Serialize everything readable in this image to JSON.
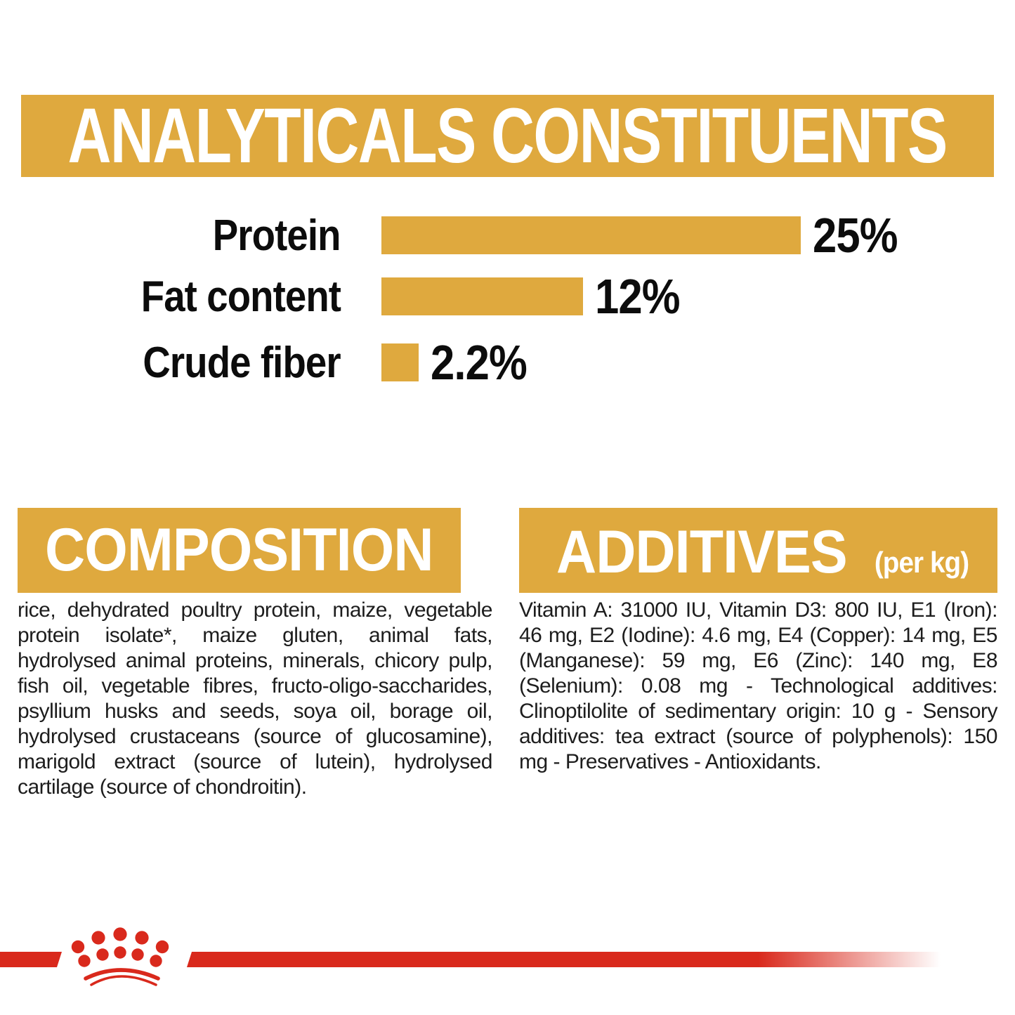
{
  "colors": {
    "gold": "#DFA93E",
    "red": "#D9291C",
    "text": "#1D1D1D",
    "white": "#FFFFFF"
  },
  "analyticals": {
    "title": "ANALYTICALS CONSTITUENTS"
  },
  "chart_data": {
    "type": "bar",
    "orientation": "horizontal",
    "title": "ANALYTICALS CONSTITUENTS",
    "categories": [
      "Protein",
      "Fat content",
      "Crude fiber"
    ],
    "values": [
      25,
      12,
      2.2
    ],
    "value_labels": [
      "25%",
      "12%",
      "2.2%"
    ],
    "unit": "%",
    "xlim": [
      0,
      25
    ],
    "bar_color": "#DFA93E",
    "grid": false,
    "legend": false
  },
  "composition": {
    "title": "COMPOSITION",
    "body": "rice, dehydrated poultry protein, maize, vegetable protein isolate*, maize gluten, animal fats, hydrolysed animal proteins, minerals, chicory pulp, fish oil, vegetable fibres, fructo-oligo-saccharides, psyllium husks and seeds, soya oil, borage oil, hydrolysed crustaceans (source of glucosamine), marigold extract (source of lutein), hydrolysed cartilage (source of chondroitin)."
  },
  "additives": {
    "title": "ADDITIVES",
    "suffix": "(per kg)",
    "body": "Vitamin A: 31000 IU, Vitamin D3: 800 IU, E1 (Iron): 46 mg, E2 (Iodine): 4.6 mg, E4 (Copper): 14 mg, E5 (Manganese): 59 mg, E6 (Zinc): 140 mg, E8 (Selenium): 0.08 mg - Technological additives: Clinoptilolite of sedimentary origin: 10 g - Sensory additives: tea extract (source of polyphenols): 150 mg - Preservatives - Antioxidants.",
    "clinoptilolite_value": "10 g",
    "tea_extract_value": "150 mg"
  },
  "footer": {
    "logo_icon": "royal-canin-crown-logo"
  }
}
